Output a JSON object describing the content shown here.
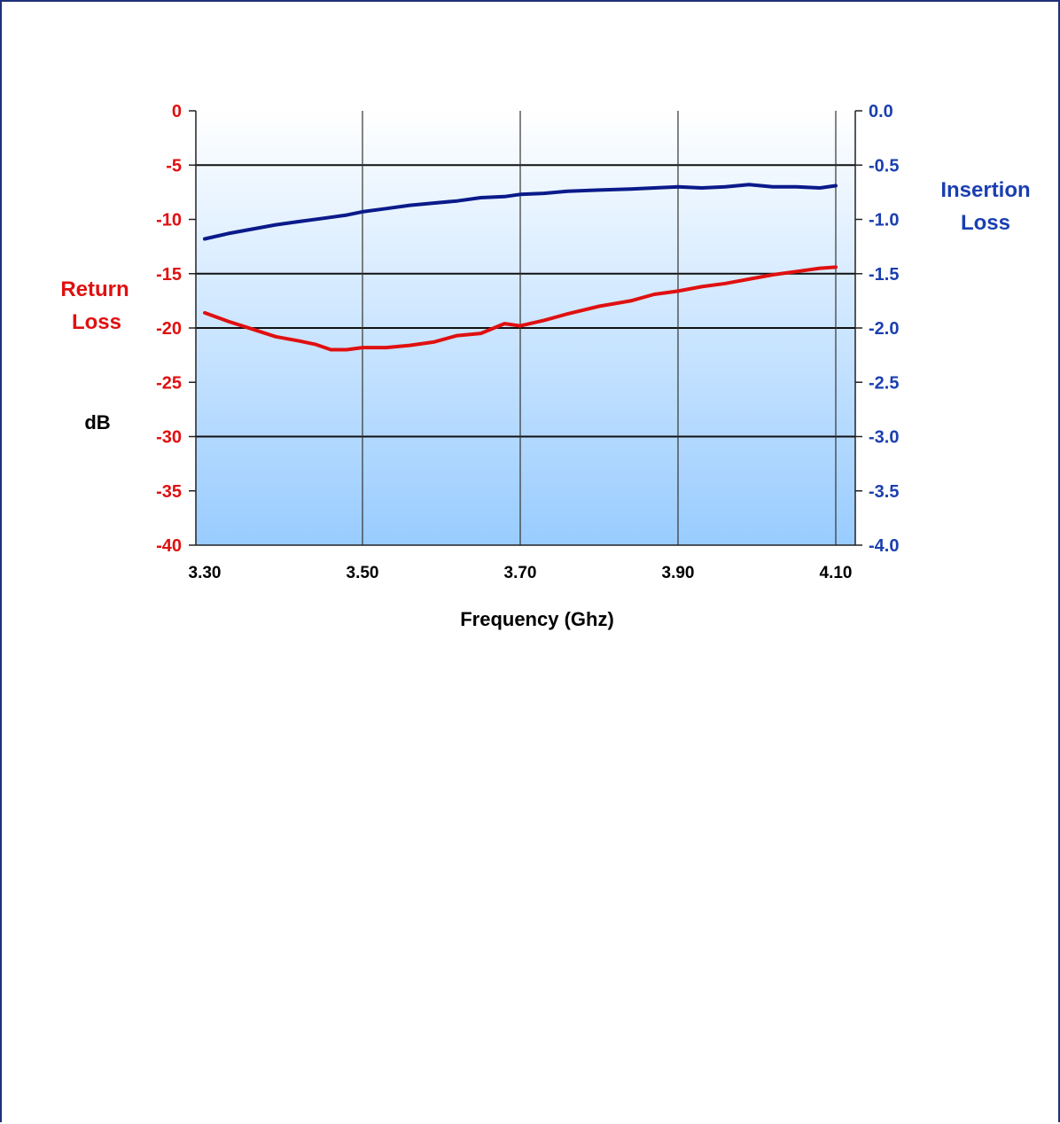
{
  "colors": {
    "return_loss": "#e01010",
    "insertion_loss": "#1a3fb0",
    "insertion_line": "#0a1a8a",
    "grid": "#111111",
    "fill_top": "#ffffff",
    "fill_bottom": "#99ccff",
    "text": "#000000"
  },
  "chart_data": {
    "type": "line",
    "title": "",
    "xlabel": "Frequency (Ghz)",
    "ylabel_left": [
      "Return",
      "Loss"
    ],
    "ylabel_left_unit": "dB",
    "ylabel_right": [
      "Insertion",
      "Loss"
    ],
    "xlim": [
      3.3,
      4.1
    ],
    "ylim_left": [
      -40,
      0
    ],
    "ylim_right": [
      -4.0,
      0.0
    ],
    "x_ticks": [
      "3.30",
      "3.50",
      "3.70",
      "3.90",
      "4.10"
    ],
    "y_left_ticks": [
      "0",
      "-5",
      "-10",
      "-15",
      "-20",
      "-25",
      "-30",
      "-35",
      "-40"
    ],
    "y_right_ticks": [
      "0.0",
      "-0.5",
      "-1.0",
      "-1.5",
      "-2.0",
      "-2.5",
      "-3.0",
      "-3.5",
      "-4.0"
    ],
    "series": [
      {
        "name": "Return Loss",
        "axis": "left",
        "x": [
          3.3,
          3.33,
          3.36,
          3.39,
          3.42,
          3.44,
          3.46,
          3.48,
          3.5,
          3.53,
          3.56,
          3.59,
          3.62,
          3.65,
          3.68,
          3.7,
          3.73,
          3.76,
          3.8,
          3.84,
          3.87,
          3.9,
          3.93,
          3.96,
          3.99,
          4.02,
          4.05,
          4.08,
          4.1
        ],
        "values": [
          -18.6,
          -19.4,
          -20.1,
          -20.8,
          -21.2,
          -21.5,
          -22.0,
          -22.0,
          -21.8,
          -21.8,
          -21.6,
          -21.3,
          -20.7,
          -20.5,
          -19.6,
          -19.8,
          -19.3,
          -18.7,
          -18.0,
          -17.5,
          -16.9,
          -16.6,
          -16.2,
          -15.9,
          -15.5,
          -15.1,
          -14.8,
          -14.5,
          -14.4
        ]
      },
      {
        "name": "Insertion Loss",
        "axis": "right",
        "x": [
          3.3,
          3.33,
          3.36,
          3.39,
          3.42,
          3.45,
          3.48,
          3.5,
          3.53,
          3.56,
          3.59,
          3.62,
          3.65,
          3.68,
          3.7,
          3.73,
          3.76,
          3.8,
          3.84,
          3.87,
          3.9,
          3.93,
          3.96,
          3.99,
          4.02,
          4.05,
          4.08,
          4.1
        ],
        "values": [
          -1.18,
          -1.13,
          -1.09,
          -1.05,
          -1.02,
          -0.99,
          -0.96,
          -0.93,
          -0.9,
          -0.87,
          -0.85,
          -0.83,
          -0.8,
          -0.79,
          -0.77,
          -0.76,
          -0.74,
          -0.73,
          -0.72,
          -0.71,
          -0.7,
          -0.71,
          -0.7,
          -0.68,
          -0.7,
          -0.7,
          -0.71,
          -0.69
        ]
      }
    ],
    "grid": {
      "horizontal": [
        -5,
        -15,
        -20,
        -30
      ],
      "vertical": [
        3.5,
        3.7,
        3.9,
        4.1
      ]
    },
    "legend": "none"
  }
}
